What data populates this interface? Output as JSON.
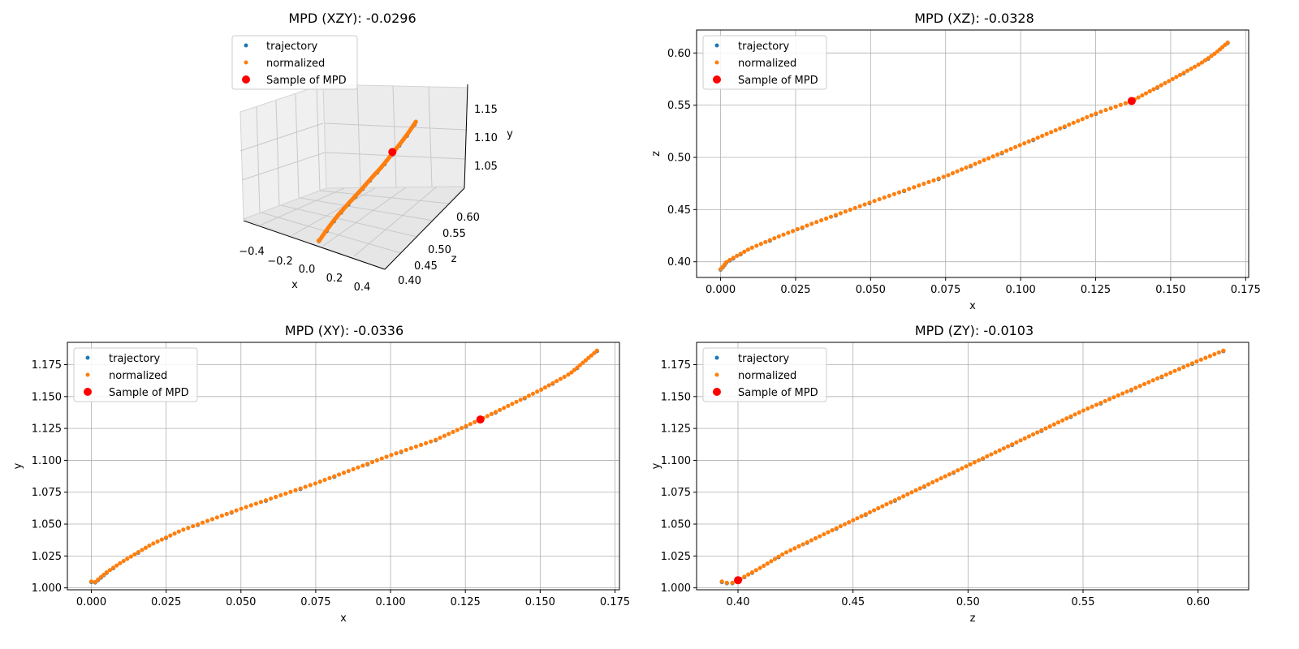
{
  "chart_data": [
    {
      "type": "scatter3d",
      "title": "MPD (XZY): -0.0296",
      "xlabel": "x",
      "ylabel": "y",
      "zlabel": "z",
      "xlim": [
        -0.5,
        0.5
      ],
      "zlim": [
        0.38,
        0.63
      ],
      "ylim": [
        1.0,
        1.19
      ],
      "x_ticks": [
        "−0.4",
        "−0.2",
        "0.0",
        "0.2",
        "0.4"
      ],
      "z_ticks": [
        "0.40",
        "0.45",
        "0.50",
        "0.55",
        "0.60"
      ],
      "y_ticks": [
        "1.05",
        "1.10",
        "1.15"
      ],
      "legend": [
        "trajectory",
        "normalized",
        "Sample of MPD"
      ],
      "legend_position": "upper-left",
      "sample_point": {
        "x": 0.137,
        "z": 0.554,
        "y": 1.141
      },
      "colors": {
        "trajectory": "#1f77b4",
        "normalized": "#ff7f0e",
        "sample": "#ff0000"
      }
    },
    {
      "type": "scatter",
      "title": "MPD (XZ): -0.0328",
      "xlabel": "x",
      "ylabel": "z",
      "xlim": [
        -0.008,
        0.176
      ],
      "ylim": [
        0.385,
        0.622
      ],
      "x_ticks": [
        "0.000",
        "0.025",
        "0.050",
        "0.075",
        "0.100",
        "0.125",
        "0.150",
        "0.175"
      ],
      "y_ticks": [
        "0.40",
        "0.45",
        "0.50",
        "0.55",
        "0.60"
      ],
      "grid": true,
      "legend": [
        "trajectory",
        "normalized",
        "Sample of MPD"
      ],
      "legend_position": "upper-left",
      "curve_x": [
        0.0,
        0.001,
        0.002,
        0.005,
        0.01,
        0.02,
        0.03,
        0.05,
        0.075,
        0.1,
        0.125,
        0.137,
        0.15,
        0.16,
        0.165,
        0.169
      ],
      "curve_y": [
        0.393,
        0.396,
        0.4,
        0.405,
        0.413,
        0.425,
        0.436,
        0.457,
        0.482,
        0.512,
        0.542,
        0.554,
        0.574,
        0.59,
        0.6,
        0.61
      ],
      "sample_point": {
        "x": 0.137,
        "y": 0.554
      },
      "colors": {
        "trajectory": "#1f77b4",
        "normalized": "#ff7f0e",
        "sample": "#ff0000"
      }
    },
    {
      "type": "scatter",
      "title": "MPD (XY): -0.0336",
      "xlabel": "x",
      "ylabel": "y",
      "xlim": [
        -0.008,
        0.1765
      ],
      "ylim": [
        0.9985,
        1.1925
      ],
      "x_ticks": [
        "0.000",
        "0.025",
        "0.050",
        "0.075",
        "0.100",
        "0.125",
        "0.150",
        "0.175"
      ],
      "y_ticks": [
        "1.000",
        "1.025",
        "1.050",
        "1.075",
        "1.100",
        "1.125",
        "1.150",
        "1.175"
      ],
      "grid": true,
      "legend": [
        "trajectory",
        "normalized",
        "Sample of MPD"
      ],
      "legend_position": "upper-left",
      "curve_x": [
        0.0,
        0.001,
        0.002,
        0.005,
        0.01,
        0.02,
        0.03,
        0.05,
        0.075,
        0.1,
        0.115,
        0.13,
        0.15,
        0.16,
        0.165,
        0.169
      ],
      "curve_y": [
        1.005,
        1.004,
        1.006,
        1.012,
        1.02,
        1.034,
        1.045,
        1.062,
        1.082,
        1.104,
        1.116,
        1.132,
        1.155,
        1.168,
        1.178,
        1.186
      ],
      "sample_point": {
        "x": 0.13,
        "y": 1.132
      },
      "colors": {
        "trajectory": "#1f77b4",
        "normalized": "#ff7f0e",
        "sample": "#ff0000"
      }
    },
    {
      "type": "scatter",
      "title": "MPD (ZY): -0.0103",
      "xlabel": "z",
      "ylabel": "y",
      "xlim": [
        0.382,
        0.622
      ],
      "ylim": [
        0.9985,
        1.1925
      ],
      "x_ticks": [
        "0.40",
        "0.45",
        "0.50",
        "0.55",
        "0.60"
      ],
      "y_ticks": [
        "1.000",
        "1.025",
        "1.050",
        "1.075",
        "1.100",
        "1.125",
        "1.150",
        "1.175"
      ],
      "grid": true,
      "legend": [
        "trajectory",
        "normalized",
        "Sample of MPD"
      ],
      "legend_position": "upper-left",
      "curve_x": [
        0.393,
        0.395,
        0.398,
        0.4,
        0.41,
        0.42,
        0.45,
        0.5,
        0.55,
        0.6,
        0.611
      ],
      "curve_y": [
        1.005,
        1.004,
        1.004,
        1.006,
        1.016,
        1.027,
        1.053,
        1.096,
        1.139,
        1.178,
        1.186
      ],
      "sample_point": {
        "x": 0.4,
        "y": 1.006
      },
      "colors": {
        "trajectory": "#1f77b4",
        "normalized": "#ff7f0e",
        "sample": "#ff0000"
      }
    }
  ]
}
